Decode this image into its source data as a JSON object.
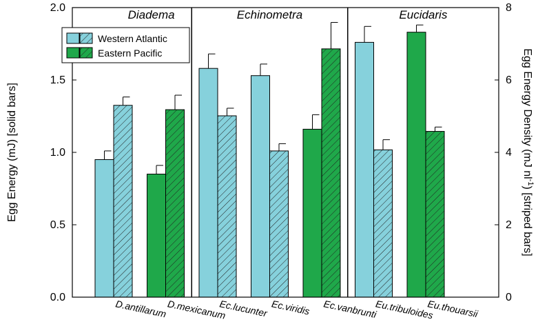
{
  "chart_data": {
    "type": "bar",
    "categories": [
      "D.antillarum",
      "D.mexicanum",
      "Ec.lucunter",
      "Ec.viridis",
      "Ec.vanbrunti",
      "Eu.tribuloides",
      "Eu.thouarsii"
    ],
    "regions": [
      "Western Atlantic",
      "Eastern Pacific",
      "Western Atlantic",
      "Western Atlantic",
      "Eastern Pacific",
      "Western Atlantic",
      "Eastern Pacific"
    ],
    "series": [
      {
        "name": "Egg Energy (solid bars)",
        "axis": "left",
        "values": [
          0.95,
          0.85,
          1.58,
          1.53,
          1.16,
          1.76,
          1.83
        ],
        "errors": [
          0.06,
          0.06,
          0.1,
          0.08,
          0.1,
          0.11,
          0.05
        ]
      },
      {
        "name": "Egg Energy Density (striped bars)",
        "axis": "right",
        "values": [
          5.3,
          5.18,
          5.01,
          4.04,
          6.86,
          4.07,
          4.58
        ],
        "errors": [
          0.23,
          0.4,
          0.21,
          0.2,
          0.73,
          0.28,
          0.12
        ]
      }
    ],
    "genus_groups": [
      {
        "label": "Diadema",
        "start": 0,
        "end": 1
      },
      {
        "label": "Echinometra",
        "start": 2,
        "end": 4
      },
      {
        "label": "Eucidaris",
        "start": 5,
        "end": 6
      }
    ],
    "left_axis": {
      "label_main": "Egg Energy (mJ) [solid bars]",
      "ylim": [
        0,
        2.0
      ],
      "ticks": [
        "0.0",
        "0.5",
        "1.0",
        "1.5",
        "2.0"
      ],
      "tick_values": [
        0,
        0.5,
        1.0,
        1.5,
        2.0
      ]
    },
    "right_axis": {
      "label_prefix": "Egg Energy Density (mJ nl",
      "label_sup": "-1",
      "label_suffix": ") [striped bars]",
      "ylim": [
        0,
        8
      ],
      "ticks": [
        "0",
        "2",
        "4",
        "6",
        "8"
      ],
      "tick_values": [
        0,
        2,
        4,
        6,
        8
      ]
    },
    "legend": {
      "placement": "top-left",
      "items": [
        {
          "label": "Western Atlantic",
          "color": "#86d1dc"
        },
        {
          "label": "Eastern Pacific",
          "color": "#1fa84a"
        }
      ]
    },
    "colors": {
      "western_atlantic": "#86d1dc",
      "eastern_pacific": "#1fa84a"
    },
    "grid": false
  }
}
